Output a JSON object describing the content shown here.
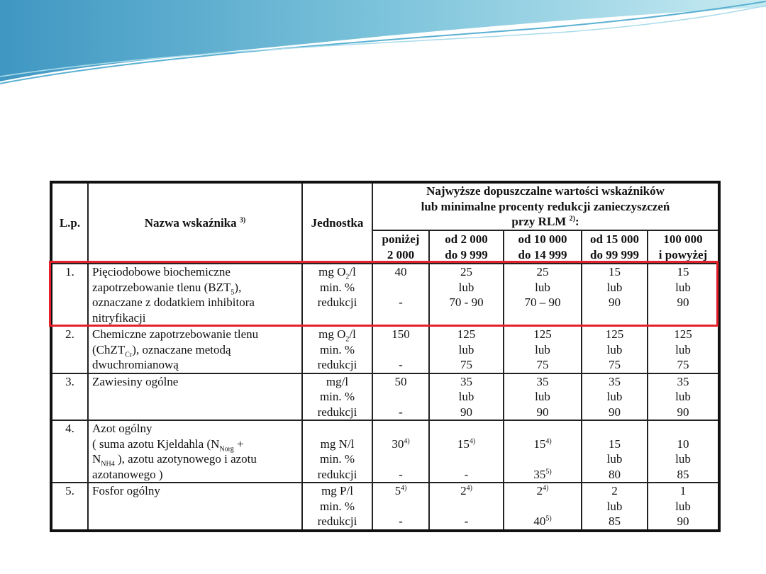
{
  "colors": {
    "highlight": "#e3202b",
    "wave_dark": "#4aa3c8",
    "wave_light": "#9fd6e6"
  },
  "header": {
    "lp": "L.p.",
    "name": "Nazwa wskaźnika",
    "name_sup": "3)",
    "unit": "Jednostka",
    "group_lines": [
      "Najwyższe dopuszczalne wartości wskaźników",
      "lub minimalne procenty redukcji zanieczyszczeń"
    ],
    "group_last": "przy RLM ",
    "group_last_sup": "2)",
    "group_last_end": ":",
    "ranges": [
      [
        "poniżej",
        "2 000"
      ],
      [
        "od 2 000",
        "do 9 999"
      ],
      [
        "od 10 000",
        "do  14 999"
      ],
      [
        "od 15 000",
        "do 99 999"
      ],
      [
        "100 000",
        "i powyżej"
      ]
    ]
  },
  "rows": [
    {
      "lp": "1.",
      "highlighted": true,
      "name": [
        [
          "Pięciodobowe biochemiczne"
        ],
        [
          "zapotrzebowanie tlenu (BZT",
          {
            "sub": "5"
          },
          "),"
        ],
        [
          "oznaczane z dodatkiem inhibitora"
        ],
        [
          "nitryfikacji"
        ]
      ],
      "unit": [
        [
          "mg O",
          {
            "sub": "2"
          },
          "/l"
        ],
        [
          "min. %"
        ],
        [
          "redukcji"
        ]
      ],
      "values": [
        [
          [
            "40"
          ],
          [
            ""
          ],
          [
            "-"
          ]
        ],
        [
          [
            "25"
          ],
          [
            "lub"
          ],
          [
            "70 - 90"
          ]
        ],
        [
          [
            "25"
          ],
          [
            "lub"
          ],
          [
            "70 – 90"
          ]
        ],
        [
          [
            "15"
          ],
          [
            "lub"
          ],
          [
            "90"
          ]
        ],
        [
          [
            "15"
          ],
          [
            "lub"
          ],
          [
            "90"
          ]
        ]
      ]
    },
    {
      "lp": "2.",
      "name": [
        [
          "Chemiczne zapotrzebowanie tlenu"
        ],
        [
          "(ChZT",
          {
            "sub": "Cr"
          },
          "), oznaczane metodą"
        ],
        [
          "dwuchromianową"
        ]
      ],
      "unit": [
        [
          "mg O",
          {
            "sub": "2"
          },
          "/l"
        ],
        [
          "min. %"
        ],
        [
          "redukcji"
        ]
      ],
      "values": [
        [
          [
            "150"
          ],
          [
            ""
          ],
          [
            "-"
          ]
        ],
        [
          [
            "125"
          ],
          [
            "lub"
          ],
          [
            "75"
          ]
        ],
        [
          [
            "125"
          ],
          [
            "lub"
          ],
          [
            "75"
          ]
        ],
        [
          [
            "125"
          ],
          [
            "lub"
          ],
          [
            "75"
          ]
        ],
        [
          [
            "125"
          ],
          [
            "lub"
          ],
          [
            "75"
          ]
        ]
      ]
    },
    {
      "lp": "3.",
      "name": [
        [
          "Zawiesiny  ogólne"
        ]
      ],
      "unit": [
        [
          "mg/l"
        ],
        [
          "min. %"
        ],
        [
          "redukcji"
        ]
      ],
      "values": [
        [
          [
            "50"
          ],
          [
            ""
          ],
          [
            "-"
          ]
        ],
        [
          [
            "35"
          ],
          [
            "lub"
          ],
          [
            "90"
          ]
        ],
        [
          [
            "35"
          ],
          [
            "lub"
          ],
          [
            "90"
          ]
        ],
        [
          [
            "35"
          ],
          [
            "lub"
          ],
          [
            "90"
          ]
        ],
        [
          [
            "35"
          ],
          [
            "lub"
          ],
          [
            "90"
          ]
        ]
      ]
    },
    {
      "lp": "4.",
      "name": [
        [
          "Azot ogólny"
        ],
        [
          "( suma azotu Kjeldahla (N",
          {
            "sub": "Norg"
          },
          " +"
        ],
        [
          "N",
          {
            "sub": "NH4"
          },
          " ), azotu  azotynowego  i azotu"
        ],
        [
          "azotanowego )"
        ]
      ],
      "unit": [
        [
          ""
        ],
        [
          "mg N/l"
        ],
        [
          "min. %"
        ],
        [
          "redukcji"
        ]
      ],
      "values": [
        [
          [
            ""
          ],
          [
            "30",
            {
              "sup": "4)"
            }
          ],
          [
            ""
          ],
          [
            "-"
          ]
        ],
        [
          [
            ""
          ],
          [
            "15",
            {
              "sup": "4)"
            }
          ],
          [
            ""
          ],
          [
            "-"
          ]
        ],
        [
          [
            ""
          ],
          [
            "15",
            {
              "sup": "4)"
            }
          ],
          [
            ""
          ],
          [
            "35",
            {
              "sup": "5)"
            }
          ]
        ],
        [
          [
            ""
          ],
          [
            "15"
          ],
          [
            "lub"
          ],
          [
            "80"
          ]
        ],
        [
          [
            ""
          ],
          [
            "10"
          ],
          [
            "lub"
          ],
          [
            "85"
          ]
        ]
      ]
    },
    {
      "lp": "5.",
      "name": [
        [
          "Fosfor ogólny"
        ]
      ],
      "unit": [
        [
          "mg P/l"
        ],
        [
          "min. %"
        ],
        [
          "redukcji"
        ]
      ],
      "values": [
        [
          [
            "5",
            {
              "sup": "4)"
            }
          ],
          [
            ""
          ],
          [
            "-"
          ]
        ],
        [
          [
            "2",
            {
              "sup": "4)"
            }
          ],
          [
            ""
          ],
          [
            "-"
          ]
        ],
        [
          [
            "2",
            {
              "sup": "4)"
            }
          ],
          [
            ""
          ],
          [
            "40",
            {
              "sup": "5)"
            }
          ]
        ],
        [
          [
            "2"
          ],
          [
            "lub"
          ],
          [
            "85"
          ]
        ],
        [
          [
            "1"
          ],
          [
            "lub"
          ],
          [
            "90"
          ]
        ]
      ]
    }
  ]
}
